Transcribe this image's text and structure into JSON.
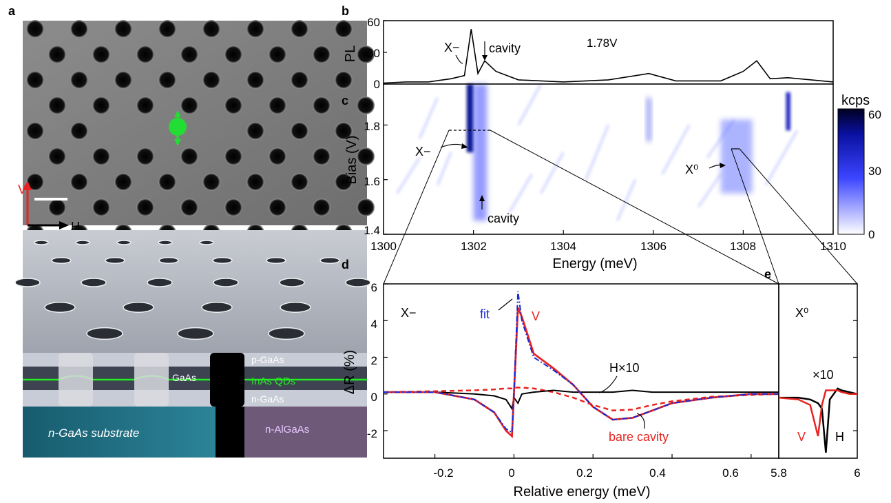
{
  "panels": {
    "a": "a",
    "b": "b",
    "c": "c",
    "d": "d",
    "e": "e"
  },
  "panel_a": {
    "axis_v": "V",
    "axis_h": "H",
    "layers": {
      "p_gaas": "p-GaAs",
      "gaas": "GaAs",
      "inas_qds": "InAs QDs",
      "n_gaas": "n-GaAs",
      "substrate": "n-GaAs substrate",
      "n_algaas": "n-AlGaAs"
    },
    "colors": {
      "dipole": "#22dd33",
      "axis_v": "#e8231f",
      "qd_line": "#22ee22",
      "substrate": "#1e6e82",
      "algaas": "#6e5a78"
    }
  },
  "panel_b": {
    "ylabel": "PL",
    "yticks": [
      "0",
      "30",
      "60"
    ],
    "voltage_label": "1.78V",
    "ann_xminus": "X−",
    "ann_cavity": "cavity"
  },
  "panel_c": {
    "ylabel": "Bias (V)",
    "xlabel": "Energy (meV)",
    "yticks": [
      "1.4",
      "1.6",
      "1.8"
    ],
    "xticks": [
      "1300",
      "1302",
      "1304",
      "1306",
      "1308",
      "1310"
    ],
    "ann_xminus": "X−",
    "ann_cavity": "cavity",
    "ann_x0": "X⁰",
    "colorbar_label": "kcps",
    "colorbar_ticks": [
      "0",
      "30",
      "60"
    ]
  },
  "panel_d": {
    "ylabel": "ΔR (%)",
    "xlabel": "Relative energy (meV)",
    "yticks": [
      "-2",
      "0",
      "2",
      "4",
      "6"
    ],
    "xticks": [
      "-0.2",
      "0",
      "0.2",
      "0.4",
      "0.6"
    ],
    "ann_xminus": "X−",
    "ann_fit": "fit",
    "ann_v": "V",
    "ann_h10": "H×10",
    "ann_bare": "bare cavity"
  },
  "panel_e": {
    "ann_x0": "X⁰",
    "ann_x10": "×10",
    "ann_v": "V",
    "ann_h": "H",
    "xticks": [
      "5.8",
      "6"
    ]
  },
  "chart_data": [
    {
      "type": "line",
      "id": "b",
      "xlabel": "",
      "ylabel": "PL",
      "xlim": [
        1300,
        1310
      ],
      "ylim": [
        0,
        60
      ],
      "x": [
        1300.0,
        1300.5,
        1301.0,
        1301.5,
        1301.8,
        1301.95,
        1302.1,
        1302.25,
        1302.5,
        1303.0,
        1304.0,
        1305.0,
        1305.9,
        1306.5,
        1307.5,
        1308.0,
        1308.3,
        1308.6,
        1309.0,
        1310.0
      ],
      "series": [
        {
          "values": [
            1,
            2,
            2,
            5,
            8,
            52,
            10,
            22,
            12,
            4,
            2,
            4,
            10,
            3,
            3,
            12,
            22,
            5,
            6,
            2
          ]
        }
      ],
      "annotations": [
        "X−",
        "cavity",
        "1.78V"
      ]
    },
    {
      "type": "heatmap",
      "id": "c",
      "xlabel": "Energy (meV)",
      "ylabel": "Bias (V)",
      "xlim": [
        1300,
        1310
      ],
      "ylim": [
        1.4,
        1.95
      ],
      "colorbar": {
        "label": "kcps",
        "range": [
          0,
          60
        ]
      },
      "features": [
        {
          "name": "X−",
          "x": [
            1301.85,
            1302.0
          ],
          "y": [
            1.7,
            1.95
          ],
          "level": 60
        },
        {
          "name": "cavity",
          "x": [
            1302.0,
            1302.3
          ],
          "y": [
            1.45,
            1.95
          ],
          "level": 30
        },
        {
          "name": "line",
          "x": [
            1305.85,
            1305.95
          ],
          "y": [
            1.74,
            1.9
          ],
          "level": 25
        },
        {
          "name": "line",
          "x": [
            1308.95,
            1309.05
          ],
          "y": [
            1.78,
            1.92
          ],
          "level": 55
        },
        {
          "name": "X⁰",
          "x": [
            1307.5,
            1308.2
          ],
          "y": [
            1.55,
            1.82
          ],
          "level": 20
        }
      ],
      "annotations": [
        "X−",
        "cavity",
        "X⁰"
      ]
    },
    {
      "type": "line",
      "id": "d",
      "xlabel": "Relative energy (meV)",
      "ylabel": "ΔR (%)",
      "xlim": [
        -0.33,
        0.67
      ],
      "ylim": [
        -3.5,
        6
      ],
      "x": [
        -0.33,
        -0.2,
        -0.1,
        -0.05,
        -0.02,
        -0.005,
        0.0,
        0.01,
        0.02,
        0.05,
        0.1,
        0.15,
        0.2,
        0.25,
        0.3,
        0.35,
        0.4,
        0.5,
        0.6,
        0.67
      ],
      "series": [
        {
          "name": "V",
          "color": "#e8231f",
          "values": [
            0.1,
            0.1,
            -0.3,
            -1.0,
            -2.0,
            -2.3,
            0.0,
            4.7,
            4.2,
            2.2,
            1.4,
            0.5,
            -0.7,
            -1.4,
            -1.3,
            -0.9,
            -0.5,
            -0.2,
            0.0,
            0.0
          ]
        },
        {
          "name": "fit",
          "color": "#1a2bd6",
          "values": [
            0.1,
            0.1,
            -0.3,
            -1.0,
            -1.9,
            -2.1,
            0.0,
            5.6,
            4.0,
            2.0,
            1.3,
            0.5,
            -0.7,
            -1.4,
            -1.3,
            -0.9,
            -0.5,
            -0.2,
            0.0,
            0.0
          ]
        },
        {
          "name": "H×10",
          "color": "#000000",
          "values": [
            0.1,
            0.1,
            0.0,
            -0.1,
            -0.3,
            -0.8,
            -0.2,
            -0.5,
            0.0,
            0.1,
            0.2,
            0.1,
            0.1,
            0.1,
            0.2,
            0.1,
            0.1,
            0.1,
            0.1,
            0.1
          ]
        },
        {
          "name": "bare cavity",
          "color": "#e8231f",
          "values": [
            0.1,
            0.15,
            0.2,
            0.25,
            0.3,
            0.3,
            0.35,
            0.35,
            0.35,
            0.3,
            0.1,
            -0.2,
            -0.6,
            -0.9,
            -0.85,
            -0.6,
            -0.4,
            -0.15,
            -0.05,
            0.0
          ]
        }
      ],
      "annotations": [
        "X−",
        "fit",
        "V",
        "H×10",
        "bare cavity"
      ]
    },
    {
      "type": "line",
      "id": "e",
      "xlabel": "",
      "ylabel": "",
      "xlim": [
        5.8,
        6.0
      ],
      "ylim": [
        -3.5,
        6
      ],
      "x": [
        5.8,
        5.85,
        5.88,
        5.9,
        5.91,
        5.92,
        5.93,
        5.95,
        5.96,
        5.98,
        6.0
      ],
      "series": [
        {
          "name": "V",
          "color": "#e8231f",
          "values": [
            -0.2,
            -0.3,
            -0.6,
            -2.3,
            -0.6,
            0.2,
            0.2,
            0.2,
            0.1,
            0.0,
            0.0
          ]
        },
        {
          "name": "H",
          "color": "#000000",
          "values": [
            -0.2,
            -0.2,
            -0.3,
            -0.5,
            -0.8,
            -3.2,
            -0.3,
            0.3,
            0.2,
            0.1,
            0.0
          ]
        }
      ],
      "annotations": [
        "X⁰",
        "×10",
        "V",
        "H"
      ]
    }
  ]
}
